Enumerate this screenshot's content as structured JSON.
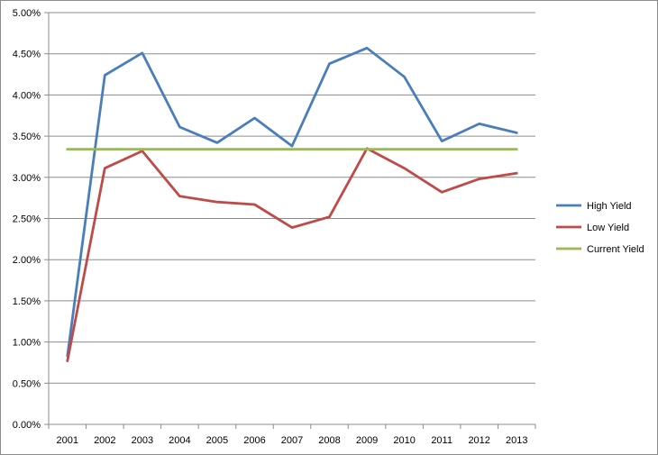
{
  "chart_data": {
    "type": "line",
    "title": "",
    "xlabel": "",
    "ylabel": "",
    "categories": [
      "2001",
      "2002",
      "2003",
      "2004",
      "2005",
      "2006",
      "2007",
      "2008",
      "2009",
      "2010",
      "2011",
      "2012",
      "2013"
    ],
    "ylim": [
      0,
      0.05
    ],
    "y_ticks": [
      "0.00%",
      "0.50%",
      "1.00%",
      "1.50%",
      "2.00%",
      "2.50%",
      "3.00%",
      "3.50%",
      "4.00%",
      "4.50%",
      "5.00%"
    ],
    "grid": "horizontal",
    "legend_position": "right",
    "series": [
      {
        "name": "High Yield",
        "color": "#4a7ebb",
        "values": [
          0.0083,
          0.0424,
          0.0451,
          0.0361,
          0.0342,
          0.0372,
          0.0338,
          0.0438,
          0.0457,
          0.0422,
          0.0344,
          0.0365,
          0.0354
        ]
      },
      {
        "name": "Low Yield",
        "color": "#be4b48",
        "values": [
          0.0077,
          0.0311,
          0.0332,
          0.0277,
          0.027,
          0.0267,
          0.0239,
          0.0252,
          0.0335,
          0.0311,
          0.0282,
          0.0298,
          0.0305
        ]
      },
      {
        "name": "Current Yield",
        "color": "#98b954",
        "values": [
          0.0334,
          0.0334,
          0.0334,
          0.0334,
          0.0334,
          0.0334,
          0.0334,
          0.0334,
          0.0334,
          0.0334,
          0.0334,
          0.0334,
          0.0334
        ]
      }
    ]
  }
}
